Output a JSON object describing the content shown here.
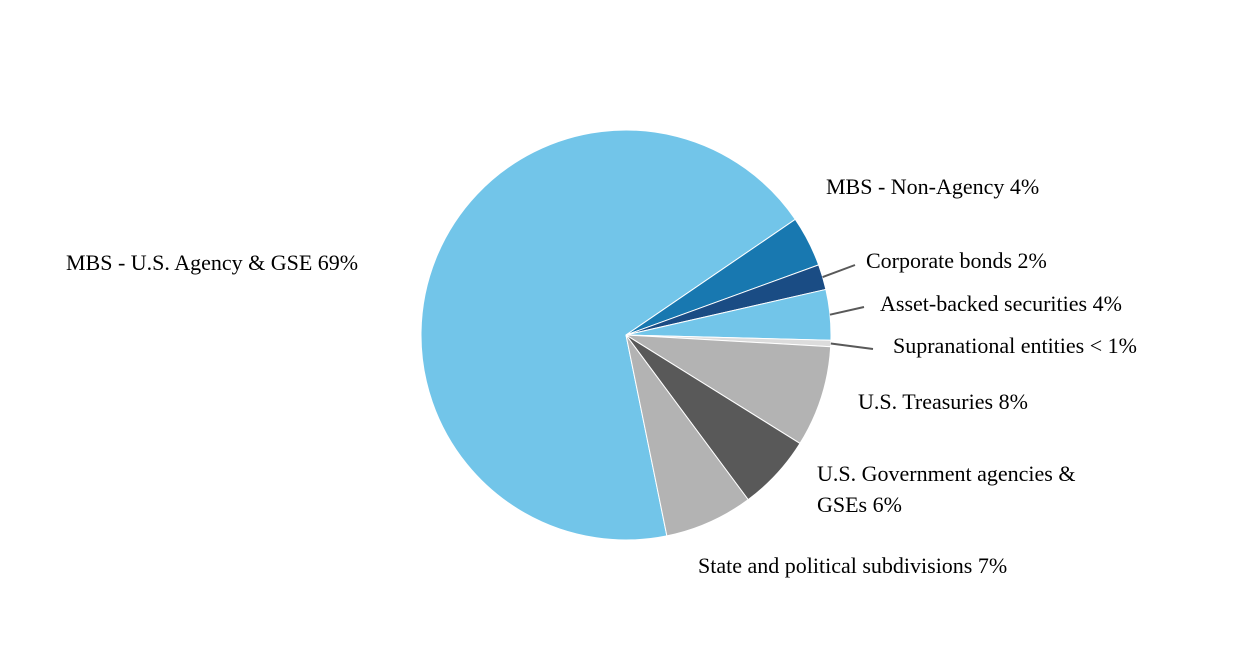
{
  "chart_data": {
    "type": "pie",
    "title": "",
    "legend_position": "none",
    "labeling": "data labels around pie, three with leader lines",
    "background_color": "#ffffff",
    "leader_line_color": "#595959",
    "slice_border_color": "#ffffff",
    "start_angle_screen_deg": 78.5,
    "slices": [
      {
        "label": "MBS - U.S. Agency & GSE",
        "display": "MBS - U.S. Agency & GSE 69%",
        "value": 69,
        "pct": "69%",
        "color": "#72C5E9"
      },
      {
        "label": "MBS - Non-Agency",
        "display": "MBS - Non-Agency 4%",
        "value": 4,
        "pct": "4%",
        "color": "#1878B0"
      },
      {
        "label": "Corporate bonds",
        "display": "Corporate bonds 2%",
        "value": 2,
        "pct": "2%",
        "color": "#1A4C84"
      },
      {
        "label": "Asset-backed securities",
        "display": "Asset-backed securities 4%",
        "value": 4,
        "pct": "4%",
        "color": "#72C5E9"
      },
      {
        "label": "Supranational entities",
        "display": "Supranational entities < 1%",
        "value": 0.5,
        "pct": "< 1%",
        "color": "#DCDCDC"
      },
      {
        "label": "U.S. Treasuries",
        "display": "U.S. Treasuries 8%",
        "value": 8,
        "pct": "8%",
        "color": "#B3B3B3"
      },
      {
        "label": "U.S. Government agencies & GSEs",
        "display": "U.S. Government agencies & GSEs 6%",
        "value": 6,
        "pct": "6%",
        "color": "#595959"
      },
      {
        "label": "State and political subdivisions",
        "display": "State and political subdivisions 7%",
        "value": 7,
        "pct": "7%",
        "color": "#B3B3B3"
      }
    ]
  }
}
